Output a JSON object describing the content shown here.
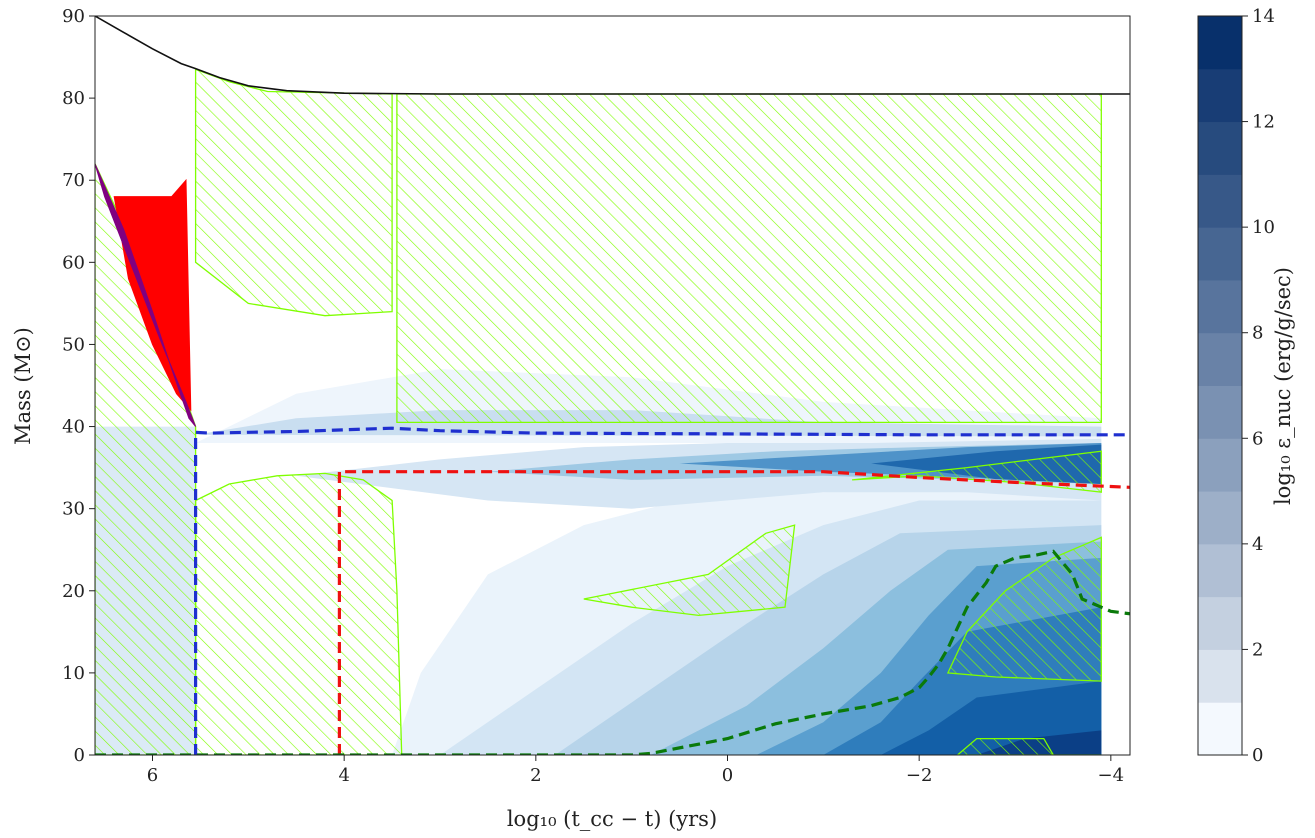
{
  "chart_data": {
    "type": "kippenhahn",
    "xlabel": "log₁₀ (t_cc − t) (yrs)",
    "ylabel": "Mass (M⊙)",
    "colorbar_label": "log₁₀ ε_nuc (erg/g/sec)",
    "xlim": [
      6.6,
      -4.2
    ],
    "ylim": [
      0,
      90
    ],
    "xticks": [
      6,
      4,
      2,
      0,
      -2,
      -4
    ],
    "xtick_labels": [
      "6",
      "4",
      "2",
      "0",
      "−2",
      "−4"
    ],
    "yticks": [
      0,
      10,
      20,
      30,
      40,
      50,
      60,
      70,
      80,
      90
    ],
    "colorbar_range": [
      0,
      14
    ],
    "colorbar_ticks": [
      0,
      2,
      4,
      6,
      8,
      10,
      12,
      14
    ],
    "colorbar_levels": 14,
    "colors": {
      "total_mass": "#111111",
      "convection_hatch": "#7fff00",
      "he_core_boundary": "#1f2fcf",
      "co_core_boundary": "#ee1111",
      "fe_core_boundary": "#0a7a0a",
      "semiconvection": "#ff0000",
      "overshoot": "#800080",
      "cmap_low": "#f4f9fe",
      "cmap_high": "#08306b"
    },
    "series": [
      {
        "style": "solid",
        "color_key": "total_mass",
        "x": [
          6.6,
          6.3,
          6.0,
          5.7,
          5.55,
          5.3,
          5.0,
          4.6,
          4.0,
          3.0,
          2.0,
          0.0,
          -2.0,
          -4.2
        ],
        "y": [
          90,
          88,
          86,
          84.2,
          83.6,
          82.5,
          81.5,
          80.9,
          80.6,
          80.5,
          80.5,
          80.5,
          80.5,
          80.5
        ]
      },
      {
        "style": "dashed",
        "color_key": "he_core_boundary",
        "x": [
          5.55,
          5.55,
          5.4,
          5.0,
          4.5,
          4.0,
          3.5,
          3.0,
          2.0,
          0.0,
          -2.0,
          -4.2
        ],
        "y": [
          0,
          39.3,
          39.2,
          39.3,
          39.4,
          39.6,
          39.8,
          39.5,
          39.2,
          39.1,
          39.0,
          39.0
        ]
      },
      {
        "style": "dashed",
        "color_key": "co_core_boundary",
        "x": [
          4.05,
          4.05,
          3.5,
          2.0,
          0.0,
          -1.0,
          -2.0,
          -3.0,
          -4.0,
          -4.2
        ],
        "y": [
          0,
          34.5,
          34.5,
          34.5,
          34.5,
          34.5,
          33.8,
          33.2,
          32.7,
          32.6
        ]
      },
      {
        "style": "dashed",
        "color_key": "fe_core_boundary",
        "x": [
          6.6,
          1.0,
          0.8,
          0.0,
          -0.5,
          -1.0,
          -1.5,
          -1.8,
          -2.0,
          -2.1,
          -2.2,
          -2.3,
          -2.5,
          -2.7,
          -2.8,
          -3.0,
          -3.2,
          -3.4,
          -3.6,
          -3.7,
          -3.8,
          -3.9,
          -4.0,
          -4.2
        ],
        "y": [
          0,
          0,
          0.2,
          2.0,
          3.8,
          5.0,
          6.0,
          7.0,
          8.2,
          9.5,
          11.0,
          13.0,
          18.0,
          21.0,
          23.0,
          24.0,
          24.3,
          24.8,
          22.0,
          19.0,
          18.5,
          18.0,
          17.5,
          17.2
        ]
      }
    ]
  }
}
